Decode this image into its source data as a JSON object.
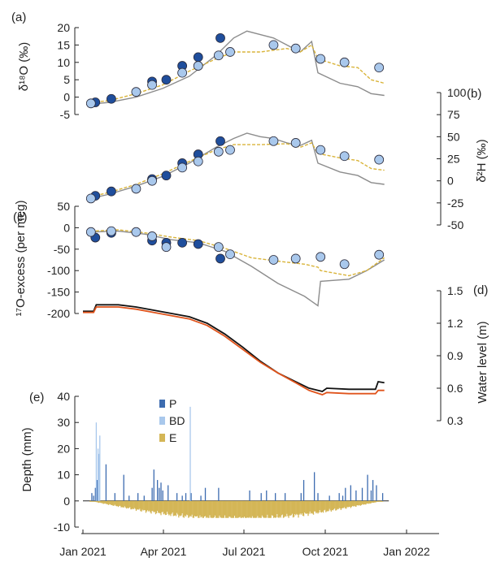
{
  "colors": {
    "p_fill": "#1f4e9c",
    "bd_fill": "#a9c8ec",
    "marker_edge": "#2a2a3a",
    "model_gray": "#8c8c8c",
    "model_gold": "#d9b43a",
    "stream_black": "#111111",
    "stream_orange": "#e0541c",
    "precip_dark": "#3d6cb0",
    "precip_light": "#a9c8ec",
    "evap": "#d4b656"
  },
  "chart_data": [
    {
      "panel": "(a)",
      "type": "scatter",
      "ylabel": "δ¹⁸O (‰)",
      "ylim": [
        -5,
        20
      ],
      "yticks": [
        -5,
        0,
        5,
        10,
        15,
        20
      ],
      "series": [
        {
          "marker_style": "dark",
          "points": [
            [
              14,
              -1.5
            ],
            [
              32,
              -0.5
            ],
            [
              78,
              4.5
            ],
            [
              94,
              5
            ],
            [
              112,
              9
            ],
            [
              130,
              11.5
            ],
            [
              155,
              17
            ]
          ]
        },
        {
          "marker_style": "light",
          "points": [
            [
              9,
              -1.8
            ],
            [
              60,
              1.5
            ],
            [
              78,
              3.5
            ],
            [
              112,
              7
            ],
            [
              130,
              9
            ],
            [
              153,
              12
            ],
            [
              166,
              13
            ],
            [
              215,
              15
            ],
            [
              240,
              14
            ],
            [
              268,
              11
            ],
            [
              295,
              10
            ],
            [
              334,
              8.5
            ]
          ]
        },
        {
          "line_style": "gray",
          "points": [
            [
              9,
              -2
            ],
            [
              30,
              -1.5
            ],
            [
              60,
              0
            ],
            [
              90,
              2.5
            ],
            [
              120,
              6
            ],
            [
              150,
              12
            ],
            [
              170,
              17
            ],
            [
              185,
              19
            ],
            [
              200,
              18
            ],
            [
              215,
              17
            ],
            [
              230,
              15
            ],
            [
              245,
              13
            ],
            [
              258,
              16
            ],
            [
              265,
              7
            ],
            [
              290,
              4
            ],
            [
              310,
              3
            ],
            [
              325,
              1
            ],
            [
              340,
              0.5
            ]
          ]
        },
        {
          "line_style": "gold",
          "points": [
            [
              9,
              -1.5
            ],
            [
              30,
              -1
            ],
            [
              60,
              1
            ],
            [
              90,
              3.5
            ],
            [
              120,
              7.5
            ],
            [
              150,
              11
            ],
            [
              170,
              13
            ],
            [
              200,
              13
            ],
            [
              230,
              14
            ],
            [
              245,
              13
            ],
            [
              258,
              15
            ],
            [
              265,
              11
            ],
            [
              290,
              9
            ],
            [
              310,
              8.5
            ],
            [
              325,
              5
            ],
            [
              340,
              4
            ]
          ]
        }
      ]
    },
    {
      "panel": "(b)",
      "type": "scatter",
      "ylabel": "δ²H (‰)",
      "ylim": [
        -50,
        100
      ],
      "yticks": [
        -50,
        -25,
        0,
        25,
        50,
        75,
        100
      ],
      "series": [
        {
          "marker_style": "dark",
          "points": [
            [
              14,
              -17
            ],
            [
              32,
              -12
            ],
            [
              78,
              2
            ],
            [
              94,
              6
            ],
            [
              112,
              20
            ],
            [
              130,
              30
            ],
            [
              155,
              45
            ]
          ]
        },
        {
          "marker_style": "light",
          "points": [
            [
              9,
              -20
            ],
            [
              60,
              -9
            ],
            [
              78,
              0
            ],
            [
              112,
              15
            ],
            [
              130,
              22
            ],
            [
              153,
              33
            ],
            [
              166,
              35
            ],
            [
              215,
              45
            ],
            [
              240,
              43
            ],
            [
              268,
              35
            ],
            [
              295,
              28
            ],
            [
              334,
              24
            ]
          ]
        },
        {
          "line_style": "gray",
          "points": [
            [
              9,
              -20
            ],
            [
              30,
              -15
            ],
            [
              60,
              -6
            ],
            [
              90,
              5
            ],
            [
              120,
              20
            ],
            [
              150,
              38
            ],
            [
              170,
              48
            ],
            [
              185,
              54
            ],
            [
              200,
              50
            ],
            [
              215,
              48
            ],
            [
              230,
              43
            ],
            [
              245,
              40
            ],
            [
              258,
              46
            ],
            [
              265,
              20
            ],
            [
              290,
              10
            ],
            [
              310,
              6
            ],
            [
              325,
              -2
            ],
            [
              340,
              -4
            ]
          ]
        },
        {
          "line_style": "gold",
          "points": [
            [
              9,
              -18
            ],
            [
              30,
              -13
            ],
            [
              60,
              -4
            ],
            [
              90,
              8
            ],
            [
              120,
              22
            ],
            [
              150,
              35
            ],
            [
              170,
              41
            ],
            [
              200,
              41
            ],
            [
              230,
              42
            ],
            [
              245,
              38
            ],
            [
              258,
              43
            ],
            [
              265,
              31
            ],
            [
              290,
              26
            ],
            [
              310,
              23
            ],
            [
              325,
              14
            ],
            [
              340,
              12
            ]
          ]
        }
      ]
    },
    {
      "panel": "(c)",
      "type": "scatter",
      "ylabel": "¹⁷O-excess (per meg)",
      "ylim": [
        -200,
        50
      ],
      "yticks": [
        -200,
        -150,
        -100,
        -50,
        0,
        50
      ],
      "series": [
        {
          "marker_style": "dark",
          "points": [
            [
              14,
              -23
            ],
            [
              32,
              -12
            ],
            [
              78,
              -30
            ],
            [
              94,
              -35
            ],
            [
              112,
              -35
            ],
            [
              130,
              -38
            ],
            [
              155,
              -72
            ]
          ]
        },
        {
          "marker_style": "light",
          "points": [
            [
              9,
              -10
            ],
            [
              32,
              -8
            ],
            [
              60,
              -10
            ],
            [
              78,
              -20
            ],
            [
              94,
              -45
            ],
            [
              153,
              -45
            ],
            [
              166,
              -62
            ],
            [
              215,
              -75
            ],
            [
              240,
              -72
            ],
            [
              268,
              -68
            ],
            [
              295,
              -85
            ],
            [
              334,
              -63
            ]
          ]
        },
        {
          "line_style": "gray",
          "points": [
            [
              9,
              -10
            ],
            [
              40,
              -8
            ],
            [
              70,
              -15
            ],
            [
              100,
              -28
            ],
            [
              130,
              -35
            ],
            [
              160,
              -55
            ],
            [
              190,
              -90
            ],
            [
              220,
              -130
            ],
            [
              250,
              -160
            ],
            [
              265,
              -182
            ],
            [
              268,
              -125
            ],
            [
              300,
              -120
            ],
            [
              320,
              -100
            ],
            [
              340,
              -75
            ]
          ]
        },
        {
          "line_style": "gold",
          "points": [
            [
              9,
              -8
            ],
            [
              40,
              -5
            ],
            [
              70,
              -12
            ],
            [
              100,
              -22
            ],
            [
              130,
              -30
            ],
            [
              160,
              -48
            ],
            [
              190,
              -70
            ],
            [
              220,
              -78
            ],
            [
              250,
              -85
            ],
            [
              265,
              -92
            ],
            [
              268,
              -100
            ],
            [
              300,
              -112
            ],
            [
              320,
              -100
            ],
            [
              340,
              -70
            ]
          ]
        }
      ]
    },
    {
      "panel": "(d)",
      "type": "line",
      "ylabel": "Water level (m)",
      "ylim": [
        0.3,
        1.5
      ],
      "yticks": [
        0.3,
        0.6,
        0.9,
        1.2,
        1.5
      ],
      "series": [
        {
          "line_style": "black",
          "points": [
            [
              0,
              1.31
            ],
            [
              12,
              1.31
            ],
            [
              15,
              1.37
            ],
            [
              40,
              1.37
            ],
            [
              60,
              1.35
            ],
            [
              80,
              1.32
            ],
            [
              100,
              1.29
            ],
            [
              120,
              1.26
            ],
            [
              140,
              1.2
            ],
            [
              160,
              1.1
            ],
            [
              180,
              0.98
            ],
            [
              200,
              0.85
            ],
            [
              220,
              0.74
            ],
            [
              240,
              0.66
            ],
            [
              255,
              0.6
            ],
            [
              270,
              0.57
            ],
            [
              275,
              0.6
            ],
            [
              300,
              0.59
            ],
            [
              330,
              0.59
            ],
            [
              333,
              0.66
            ],
            [
              340,
              0.65
            ]
          ]
        },
        {
          "line_style": "orange",
          "points": [
            [
              0,
              1.3
            ],
            [
              12,
              1.3
            ],
            [
              15,
              1.35
            ],
            [
              40,
              1.35
            ],
            [
              60,
              1.33
            ],
            [
              80,
              1.3
            ],
            [
              100,
              1.27
            ],
            [
              120,
              1.24
            ],
            [
              140,
              1.18
            ],
            [
              160,
              1.08
            ],
            [
              180,
              0.96
            ],
            [
              200,
              0.84
            ],
            [
              220,
              0.74
            ],
            [
              240,
              0.65
            ],
            [
              255,
              0.58
            ],
            [
              270,
              0.54
            ],
            [
              275,
              0.56
            ],
            [
              300,
              0.55
            ],
            [
              330,
              0.55
            ],
            [
              333,
              0.58
            ],
            [
              340,
              0.58
            ]
          ]
        }
      ]
    },
    {
      "panel": "(e)",
      "type": "bar",
      "ylabel": "Depth (mm)",
      "ylim": [
        -10,
        40
      ],
      "yticks": [
        -10,
        0,
        10,
        20,
        30,
        40
      ],
      "legend": [
        {
          "label": "P",
          "color_key": "precip_dark"
        },
        {
          "label": "BD",
          "color_key": "precip_light"
        },
        {
          "label": "E",
          "color_key": "evap"
        }
      ],
      "series": [
        {
          "name": "P",
          "bars": [
            [
              10,
              3
            ],
            [
              12,
              2
            ],
            [
              14,
              5
            ],
            [
              16,
              8
            ],
            [
              26,
              14
            ],
            [
              36,
              3
            ],
            [
              46,
              10
            ],
            [
              52,
              2
            ],
            [
              62,
              3
            ],
            [
              69,
              2
            ],
            [
              78,
              5
            ],
            [
              80,
              12
            ],
            [
              84,
              8
            ],
            [
              86,
              5
            ],
            [
              88,
              7
            ],
            [
              90,
              4
            ],
            [
              96,
              6
            ],
            [
              106,
              3
            ],
            [
              112,
              2
            ],
            [
              116,
              3
            ],
            [
              122,
              3
            ],
            [
              133,
              2
            ],
            [
              138,
              5
            ],
            [
              153,
              5
            ],
            [
              188,
              4
            ],
            [
              201,
              3
            ],
            [
              207,
              4
            ],
            [
              217,
              3
            ],
            [
              228,
              3
            ],
            [
              246,
              3
            ],
            [
              249,
              8
            ],
            [
              261,
              11
            ],
            [
              265,
              3
            ],
            [
              278,
              2
            ],
            [
              289,
              3
            ],
            [
              293,
              2
            ],
            [
              296,
              5
            ],
            [
              302,
              6
            ],
            [
              308,
              4
            ],
            [
              315,
              5
            ],
            [
              321,
              10
            ],
            [
              325,
              4
            ],
            [
              327,
              8
            ],
            [
              331,
              6
            ],
            [
              338,
              3
            ]
          ]
        },
        {
          "name": "BD",
          "bars": [
            [
              15,
              30
            ],
            [
              17,
              20
            ],
            [
              18,
              18
            ],
            [
              19,
              25
            ],
            [
              121,
              36
            ]
          ]
        },
        {
          "name": "E",
          "daily_depth_range": [
            0,
            -6.5
          ]
        }
      ]
    }
  ],
  "x_axis": {
    "tick_labels": [
      "Jan 2021",
      "Apr 2021",
      "Jul 2021",
      "Oct 2021",
      "Jan 2022"
    ],
    "tick_days": [
      0,
      90,
      181,
      273,
      365
    ]
  }
}
